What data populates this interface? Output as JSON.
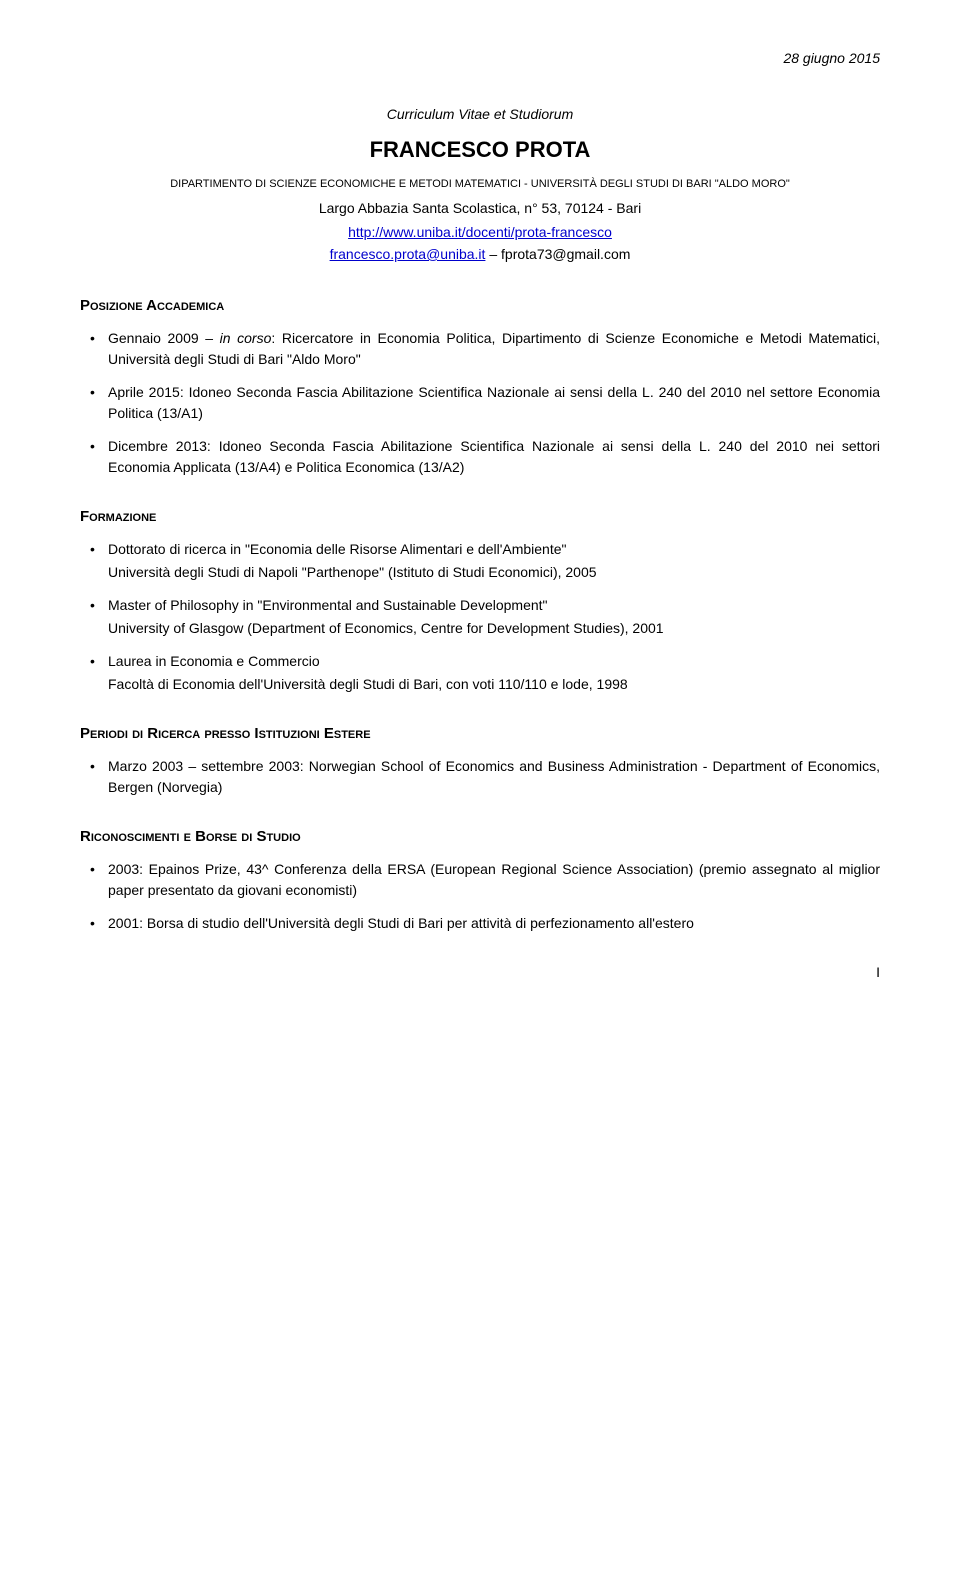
{
  "header": {
    "date": "28 giugno 2015",
    "cv_title": "Curriculum Vitae et Studiorum",
    "name": "FRANCESCO PROTA",
    "department": "DIPARTIMENTO DI SCIENZE ECONOMICHE E METODI MATEMATICI - UNIVERSITÀ DEGLI STUDI DI BARI \"ALDO MORO\"",
    "address": "Largo Abbazia Santa Scolastica, n° 53, 70124 - Bari",
    "website": "http://www.uniba.it/docenti/prota-francesco",
    "email1": "francesco.prota@uniba.it",
    "email_sep": " – ",
    "email2": "fprota73@gmail.com"
  },
  "sections": {
    "posizione": {
      "heading": "Posizione Accademica",
      "items": [
        {
          "pre": "Gennaio 2009 – ",
          "italic": "in corso",
          "post": ": Ricercatore in Economia Politica, Dipartimento di Scienze Economiche e Metodi Matematici, Università degli Studi di Bari \"Aldo Moro\""
        },
        {
          "text": "Aprile 2015: Idoneo Seconda Fascia Abilitazione Scientifica Nazionale ai sensi della L. 240 del 2010 nel settore Economia Politica (13/A1)"
        },
        {
          "text": "Dicembre 2013: Idoneo Seconda Fascia Abilitazione Scientifica Nazionale ai sensi della L. 240 del 2010 nei settori Economia Applicata (13/A4) e Politica Economica (13/A2)"
        }
      ]
    },
    "formazione": {
      "heading": "Formazione",
      "items": [
        {
          "line1": "Dottorato di ricerca in \"Economia delle Risorse Alimentari e dell'Ambiente\"",
          "line2": "Università degli Studi di Napoli \"Parthenope\" (Istituto di Studi Economici), 2005"
        },
        {
          "line1": "Master of Philosophy in \"Environmental and Sustainable Development\"",
          "line2": "University of Glasgow (Department of Economics, Centre for Development Studies), 2001"
        },
        {
          "line1": "Laurea in Economia e Commercio",
          "line2": "Facoltà di Economia dell'Università degli Studi di Bari, con voti 110/110 e lode, 1998"
        }
      ]
    },
    "periodi": {
      "heading": "Periodi di Ricerca presso Istituzioni Estere",
      "items": [
        {
          "text": "Marzo 2003 – settembre 2003: Norwegian School of Economics and Business Administration - Department of Economics, Bergen (Norvegia)"
        }
      ]
    },
    "riconoscimenti": {
      "heading": "Riconoscimenti e Borse di Studio",
      "items": [
        {
          "text": "2003: Epainos Prize, 43^ Conferenza della ERSA (European Regional Science Association) (premio assegnato al miglior paper presentato da giovani economisti)"
        },
        {
          "text": "2001: Borsa di studio dell'Università degli Studi di Bari per attività di perfezionamento all'estero"
        }
      ]
    }
  },
  "page_number": "I"
}
